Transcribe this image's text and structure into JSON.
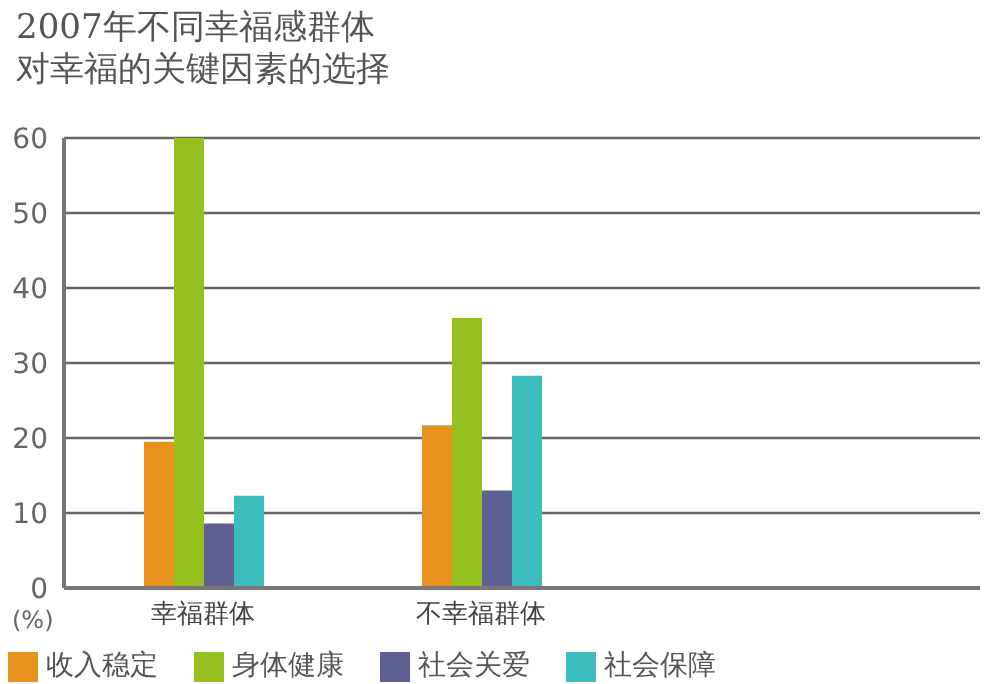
{
  "chart_data": {
    "type": "bar",
    "title": "2007年不同幸福感群体对幸福的关键因素的选择",
    "ylabel": "(%)",
    "categories": [
      "幸福群体",
      "不幸福群体"
    ],
    "series": [
      {
        "name": "收入稳定",
        "color": "#e8931e",
        "values": [
          19.5,
          21.7
        ]
      },
      {
        "name": "身体健康",
        "color": "#95c11f",
        "values": [
          60,
          36
        ]
      },
      {
        "name": "社会关爱",
        "color": "#5f5f93",
        "values": [
          8.6,
          13
        ]
      },
      {
        "name": "社会保障",
        "color": "#3cbcbc",
        "values": [
          12.3,
          28.3
        ]
      }
    ],
    "ylim": [
      0,
      60
    ],
    "yticks": [
      0,
      10,
      20,
      30,
      40,
      50,
      60
    ],
    "grid": "y",
    "legend": "bottom left"
  }
}
